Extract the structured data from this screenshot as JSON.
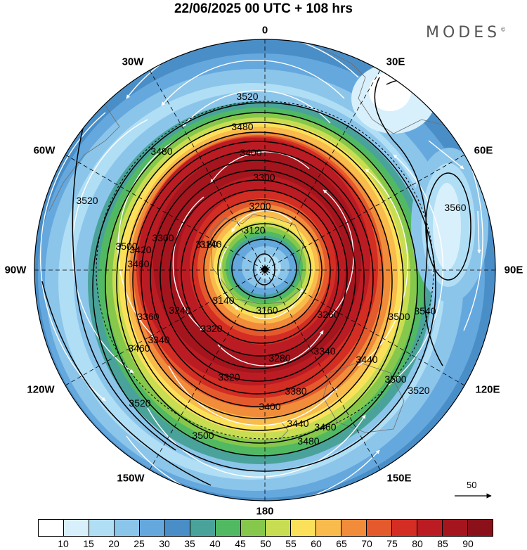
{
  "title": "22/06/2025  00 UTC  + 108 hrs",
  "brand": "MODES",
  "brand_mark": "©",
  "longitude_labels": {
    "lon_0": "0",
    "lon_30e": "30E",
    "lon_60e": "60E",
    "lon_90e": "90E",
    "lon_120e": "120E",
    "lon_150e": "150E",
    "lon_180": "180",
    "lon_150w": "150W",
    "lon_120w": "120W",
    "lon_90w": "90W",
    "lon_60w": "60W",
    "lon_30w": "30W"
  },
  "contour_labels": [
    "3120",
    "3140",
    "3160",
    "3180",
    "3200",
    "3240",
    "3260",
    "3280",
    "3300",
    "3320",
    "3340",
    "3360",
    "3380",
    "3400",
    "3420",
    "3440",
    "3460",
    "3480",
    "3500",
    "3520",
    "3540",
    "3560"
  ],
  "reference_vector": {
    "label": "50"
  },
  "colorbar": {
    "colors": [
      "#ffffff",
      "#d8f0fb",
      "#b0def5",
      "#8cc5ea",
      "#64a8de",
      "#4a8ec8",
      "#4aa39a",
      "#52b963",
      "#86c84c",
      "#c9dd52",
      "#fbe15a",
      "#f8bb4c",
      "#f08c3a",
      "#e55a2d",
      "#d32d24",
      "#bb1c23",
      "#a5151e",
      "#8a1019"
    ],
    "ticks": [
      "10",
      "15",
      "20",
      "25",
      "30",
      "35",
      "40",
      "45",
      "50",
      "55",
      "60",
      "65",
      "70",
      "75",
      "80",
      "85",
      "90"
    ]
  }
}
